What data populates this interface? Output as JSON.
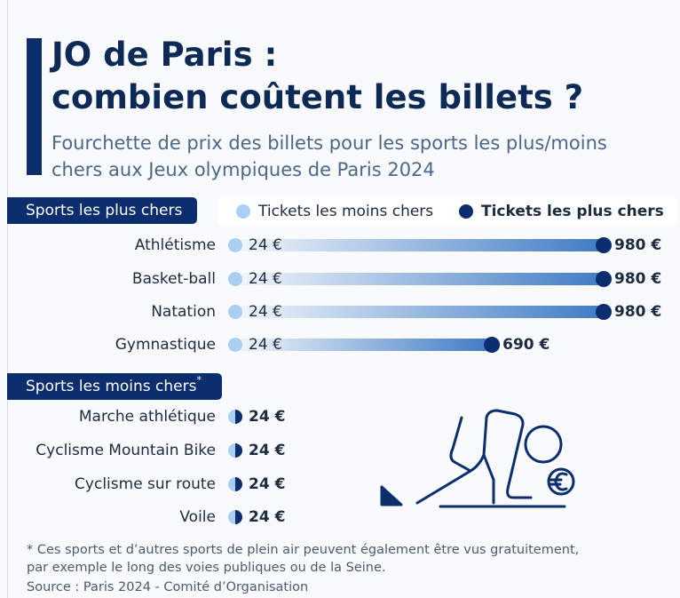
{
  "title": "JO de Paris :\ncombien coûtent les billets ?",
  "subtitle": "Fourchette de prix des billets pour les sports les plus/moins\nchers aux Jeux olympiques de Paris 2024",
  "footnote": "* Ces sports et d’autres sports de plein air peuvent également être vus gratuitement,\npar exemple le long des voies publiques ou de la Seine.",
  "source": "Source : Paris 2024 - Comité d’Organisation",
  "chart_data": [
    {
      "type": "dumbbell",
      "title": "Sports les plus chers",
      "categories": [
        "Athlétisme",
        "Basket-ball",
        "Natation",
        "Gymnastique"
      ],
      "series": [
        {
          "name": "Tickets les moins chers",
          "color": "#a9cff3",
          "values": [
            24,
            24,
            24,
            24
          ],
          "value_labels": [
            "24 €",
            "24 €",
            "24 €",
            "24 €"
          ]
        },
        {
          "name": "Tickets les plus chers",
          "color": "#0c2e6e",
          "values": [
            980,
            980,
            980,
            690
          ],
          "value_labels": [
            "980 €",
            "980 €",
            "980 €",
            "690 €"
          ]
        }
      ]
    },
    {
      "type": "dot",
      "title": "Sports les moins chers",
      "title_marker": "*",
      "categories": [
        "Marche athlétique",
        "Cyclisme Mountain Bike",
        "Cyclisme sur route",
        "Voile"
      ],
      "values": [
        24,
        24,
        24,
        24
      ],
      "value_labels": [
        "24 €",
        "24 €",
        "24 €",
        "24 €"
      ]
    }
  ]
}
